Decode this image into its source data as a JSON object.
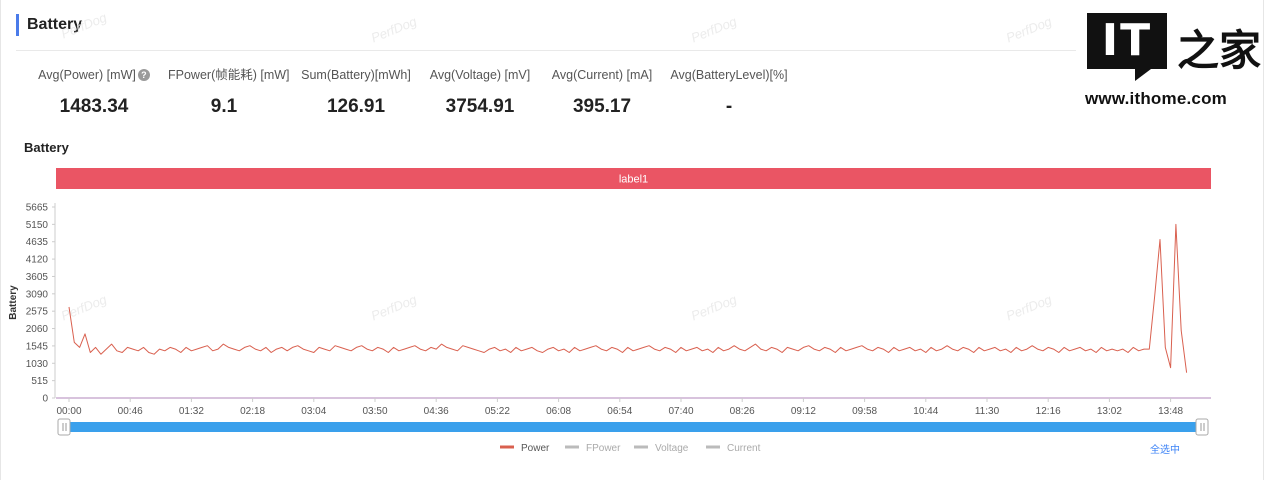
{
  "section": {
    "title": "Battery"
  },
  "watermark": "PerfDog",
  "stats": [
    {
      "label": "Avg(Power) [mW]",
      "value": "1483.34",
      "help": true
    },
    {
      "label": "FPower(帧能耗) [mW]",
      "value": "9.1"
    },
    {
      "label": "Sum(Battery)[mWh]",
      "value": "126.91"
    },
    {
      "label": "Avg(Voltage) [mV]",
      "value": "3754.91"
    },
    {
      "label": "Avg(Current) [mA]",
      "value": "395.17"
    },
    {
      "label": "Avg(BatteryLevel)[%]",
      "value": "-"
    }
  ],
  "help_icon_glyph": "?",
  "logo": {
    "it": "IT",
    "cn": "之家",
    "url": "www.ithome.com"
  },
  "select_all_label": "全选中",
  "colors": {
    "accent": "#4a7bea",
    "label_band": "#ea5564",
    "series": "#d9604f",
    "slider": "#3aa0ec"
  },
  "chart_data": {
    "type": "line",
    "title": "Battery",
    "ylabel": "Battery",
    "xlabel": "",
    "ylim": [
      0,
      5665
    ],
    "yticks": [
      0,
      515,
      1030,
      1545,
      2060,
      2575,
      3090,
      3605,
      4120,
      4635,
      5150,
      5665
    ],
    "xticks": [
      "00:00",
      "00:46",
      "01:32",
      "02:18",
      "03:04",
      "03:50",
      "04:36",
      "05:22",
      "06:08",
      "06:54",
      "07:40",
      "08:26",
      "09:12",
      "09:58",
      "10:44",
      "11:30",
      "12:16",
      "13:02",
      "13:48"
    ],
    "band_label": "label1",
    "legend": [
      {
        "name": "Power",
        "color": "#d9604f",
        "active": true
      },
      {
        "name": "FPower",
        "color": "#bbbbbb",
        "active": false
      },
      {
        "name": "Voltage",
        "color": "#bbbbbb",
        "active": false
      },
      {
        "name": "Current",
        "color": "#bbbbbb",
        "active": false
      }
    ],
    "series": [
      {
        "name": "Power",
        "x_min": [
          0,
          4,
          8,
          12,
          16,
          20,
          24,
          28,
          32,
          36,
          40,
          44,
          48,
          52,
          56,
          60,
          64,
          68,
          72,
          76,
          80,
          84,
          88,
          92,
          96,
          100,
          104,
          108,
          112,
          116,
          120,
          124,
          128,
          132,
          136,
          140,
          144,
          148,
          152,
          156,
          160,
          164,
          168,
          172,
          176,
          180,
          184,
          188,
          192,
          196,
          200,
          204,
          208,
          212,
          216,
          220,
          224,
          228,
          232,
          236,
          240,
          244,
          248,
          252,
          256,
          260,
          264,
          268,
          272,
          276,
          280,
          284,
          288,
          292,
          296,
          300,
          304,
          308,
          312,
          316,
          320,
          324,
          328,
          332,
          336,
          340,
          344,
          348,
          352,
          356,
          360,
          364,
          368,
          372,
          376,
          380,
          384,
          388,
          392,
          396,
          400,
          404,
          408,
          412,
          416,
          420,
          424,
          428,
          432,
          436,
          440,
          444,
          448,
          452,
          456,
          460,
          464,
          468,
          472,
          476,
          480,
          484,
          488,
          492,
          496,
          500,
          504,
          508,
          512,
          516,
          520,
          524,
          528,
          532,
          536,
          540,
          544,
          548,
          552,
          556,
          560,
          564,
          568,
          572,
          576,
          580,
          584,
          588,
          592,
          596,
          600,
          604,
          608,
          612,
          616,
          620,
          624,
          628,
          632,
          636,
          640,
          644,
          648,
          652,
          656,
          660,
          664,
          668,
          672,
          676,
          680,
          684,
          688,
          692,
          696,
          700,
          704,
          708,
          712,
          716,
          720,
          724,
          728,
          732,
          736,
          740,
          744,
          748,
          752,
          756,
          760,
          764,
          768,
          772,
          776,
          780,
          784,
          788,
          792,
          796,
          800,
          804,
          808,
          812,
          816,
          820,
          824,
          828,
          832,
          836,
          840,
          844,
          846,
          848,
          850,
          852,
          854,
          856,
          858
        ],
        "values": [
          2700,
          1650,
          1500,
          1900,
          1350,
          1500,
          1300,
          1450,
          1600,
          1400,
          1350,
          1500,
          1450,
          1400,
          1500,
          1350,
          1300,
          1450,
          1400,
          1500,
          1450,
          1350,
          1500,
          1400,
          1450,
          1500,
          1550,
          1400,
          1450,
          1600,
          1500,
          1450,
          1400,
          1500,
          1550,
          1450,
          1400,
          1500,
          1350,
          1450,
          1500,
          1400,
          1500,
          1550,
          1450,
          1400,
          1350,
          1500,
          1450,
          1400,
          1550,
          1500,
          1450,
          1400,
          1500,
          1550,
          1450,
          1400,
          1500,
          1450,
          1350,
          1500,
          1400,
          1450,
          1500,
          1550,
          1450,
          1400,
          1500,
          1450,
          1600,
          1500,
          1450,
          1400,
          1550,
          1500,
          1450,
          1400,
          1350,
          1450,
          1500,
          1400,
          1450,
          1350,
          1500,
          1400,
          1450,
          1500,
          1400,
          1350,
          1450,
          1500,
          1400,
          1450,
          1350,
          1500,
          1400,
          1450,
          1500,
          1550,
          1450,
          1400,
          1500,
          1450,
          1350,
          1500,
          1400,
          1450,
          1500,
          1550,
          1450,
          1400,
          1500,
          1450,
          1350,
          1500,
          1400,
          1450,
          1500,
          1400,
          1450,
          1350,
          1500,
          1400,
          1450,
          1550,
          1450,
          1400,
          1500,
          1600,
          1450,
          1400,
          1500,
          1450,
          1350,
          1500,
          1450,
          1400,
          1500,
          1550,
          1450,
          1400,
          1500,
          1450,
          1350,
          1500,
          1400,
          1450,
          1500,
          1550,
          1450,
          1400,
          1500,
          1450,
          1350,
          1500,
          1400,
          1450,
          1500,
          1400,
          1450,
          1350,
          1500,
          1400,
          1450,
          1550,
          1450,
          1400,
          1500,
          1450,
          1350,
          1500,
          1400,
          1450,
          1500,
          1400,
          1450,
          1350,
          1500,
          1400,
          1450,
          1550,
          1450,
          1400,
          1500,
          1450,
          1350,
          1500,
          1400,
          1450,
          1500,
          1400,
          1450,
          1350,
          1500,
          1400,
          1450,
          1400,
          1450,
          1350,
          1500,
          1400,
          1450,
          1450,
          3000,
          4700,
          1500,
          900,
          5150,
          2000,
          750
        ]
      }
    ],
    "grid": false,
    "legend_position": "bottom-center"
  }
}
